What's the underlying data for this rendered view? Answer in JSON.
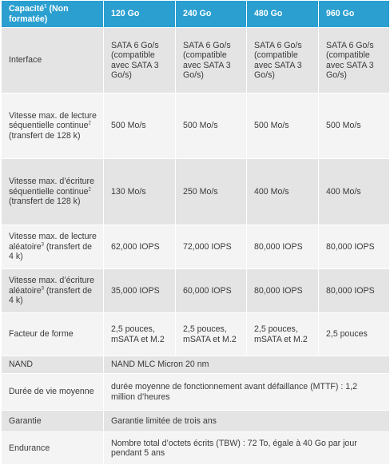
{
  "header": {
    "capacity_label": "Capacité",
    "capacity_note": "1",
    "capacity_suffix": " (Non formatée)",
    "cols": [
      "120 Go",
      "240 Go",
      "480 Go",
      "960 Go"
    ]
  },
  "rows": {
    "interface": {
      "label": "Interface",
      "values": [
        "SATA 6 Go/s (compatible avec SATA 3 Go/s)",
        "SATA 6 Go/s (compatible avec SATA 3 Go/s)",
        "SATA 6 Go/s (compatible avec SATA 3 Go/s)",
        "SATA 6 Go/s (compatible avec SATA 3 Go/s)"
      ]
    },
    "seq_read": {
      "label_before": "Vitesse max. de lecture séquentielle continue",
      "note": "2",
      "label_after": " (transfert de 128 k)",
      "values": [
        "500 Mo/s",
        "500 Mo/s",
        "500 Mo/s",
        "500 Mo/s"
      ]
    },
    "seq_write": {
      "label_before": "Vitesse max. d’écriture séquentielle continue",
      "note": "2",
      "label_after": " (transfert de 128 k)",
      "values": [
        "130 Mo/s",
        "250 Mo/s",
        "400 Mo/s",
        "400 Mo/s"
      ]
    },
    "rand_read": {
      "label_before": "Vitesse max. de lecture aléatoire",
      "note": "3",
      "label_after": " (transfert de 4 k)",
      "values": [
        "62,000 IOPS",
        "72,000 IOPS",
        "80,000 IOPS",
        "80,000 IOPS"
      ]
    },
    "rand_write": {
      "label_before": "Vitesse max. d’écriture aléatoire",
      "note": "3",
      "label_after": " (transfert de 4 k)",
      "values": [
        "35,000 IOPS",
        "60,000 IOPS",
        "80,000 IOPS",
        "80,000 IOPS"
      ]
    },
    "form_factor": {
      "label": "Facteur de forme",
      "values": [
        "2,5 pouces, mSATA et M.2",
        "2,5 pouces, mSATA et M.2",
        "2,5 pouces, mSATA et M.2",
        "2,5 pouces"
      ]
    },
    "nand": {
      "label": "NAND",
      "value": "NAND MLC Micron 20 nm"
    },
    "lifetime": {
      "label": "Durée de vie moyenne",
      "value": "durée moyenne de fonctionnement avant défaillance (MTTF) : 1,2 million d’heures"
    },
    "warranty": {
      "label": "Garantie",
      "value": "Garantie limitée de trois ans"
    },
    "endurance": {
      "label": "Endurance",
      "value": "Nombre total d’octets écrits (TBW) : 72 To, égale à 40 Go par jour pendant 5 ans"
    }
  },
  "colors": {
    "header_bg": "#2a9fd0",
    "row_dark": "#e4e4e4",
    "row_light": "#f4f4f4"
  }
}
